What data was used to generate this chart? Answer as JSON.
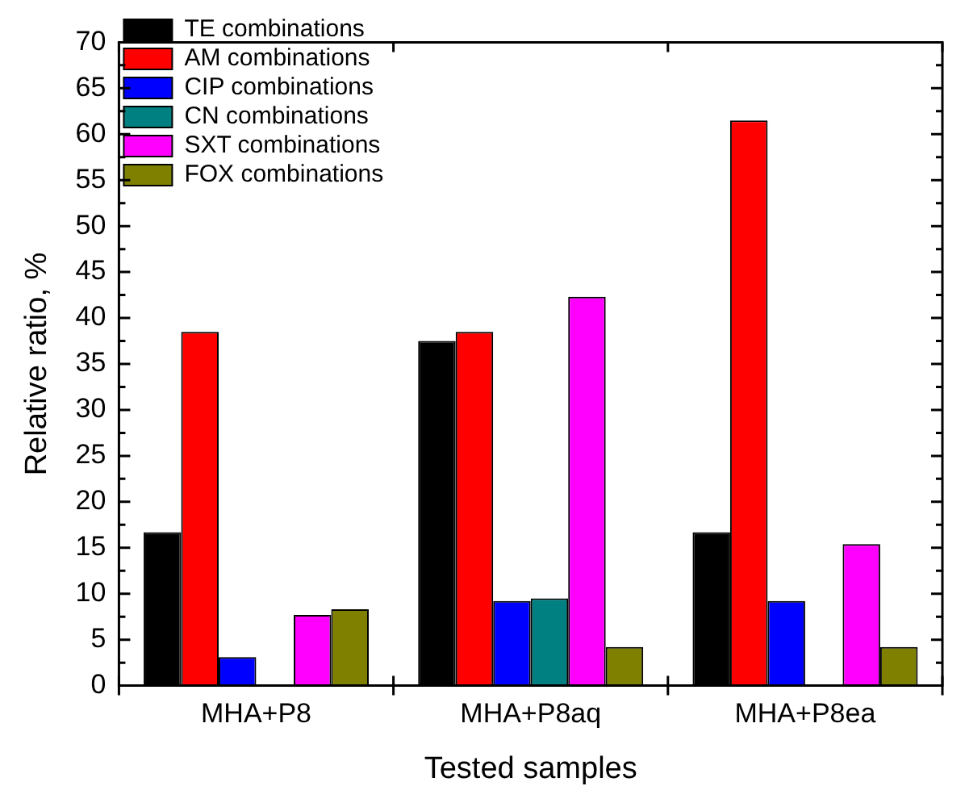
{
  "chart_data": {
    "type": "bar",
    "xlabel": "Tested samples",
    "ylabel": "Relative ratio, %",
    "categories": [
      "MHA+P8",
      "MHA+P8aq",
      "MHA+P8ea"
    ],
    "series": [
      {
        "name": "TE combinations",
        "color": "#000000",
        "values": [
          16.7,
          37.5,
          16.7
        ]
      },
      {
        "name": "AM combinations",
        "color": "#ff0000",
        "values": [
          38.5,
          38.5,
          61.5
        ]
      },
      {
        "name": "CIP combinations",
        "color": "#0000ff",
        "values": [
          3.1,
          9.2,
          9.2
        ]
      },
      {
        "name": "CN combinations",
        "color": "#008080",
        "values": [
          null,
          9.5,
          null
        ]
      },
      {
        "name": "SXT combinations",
        "color": "#ff00ff",
        "values": [
          7.7,
          42.3,
          15.4
        ]
      },
      {
        "name": "FOX combinations",
        "color": "#808000",
        "values": [
          8.3,
          4.2,
          4.2
        ]
      }
    ],
    "ylim": [
      0,
      70
    ],
    "yticks": [
      0,
      5,
      10,
      15,
      20,
      25,
      30,
      35,
      40,
      45,
      50,
      55,
      60,
      65,
      70
    ],
    "grid": false,
    "legend": "top left"
  }
}
